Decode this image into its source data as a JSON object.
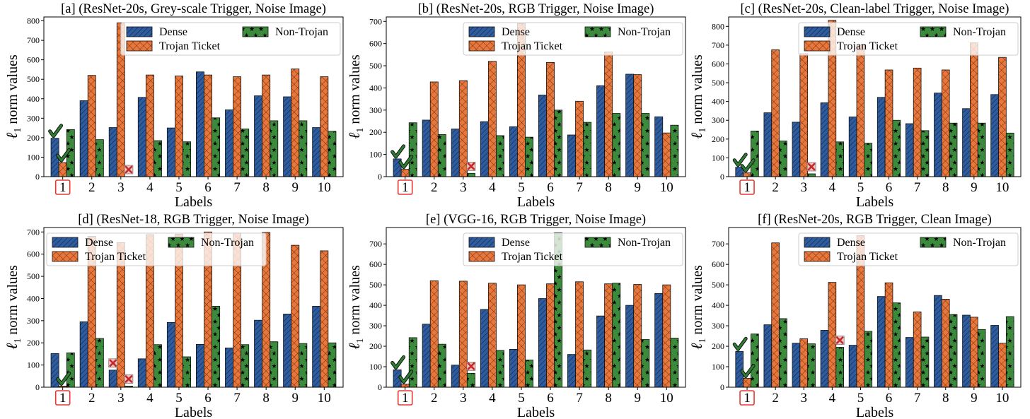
{
  "colors": {
    "dense": "#2e5c9e",
    "ticket": "#e9773b",
    "nontrojan": "#3c8a3c",
    "check": "#2e7d32",
    "cross": "#c62828",
    "highlight": "#e53935"
  },
  "chart_data": [
    {
      "type": "bar",
      "title": "[a] (ResNet-20s, Grey-scale Trigger, Noise Image)",
      "xlabel": "Labels",
      "ylabel_main": "ℓ",
      "ylabel_sub": "1",
      "ylabel_rest": " norm values",
      "categories": [
        "1",
        "2",
        "3",
        "4",
        "5",
        "6",
        "7",
        "8",
        "9",
        "10"
      ],
      "ylim": [
        0,
        820
      ],
      "yticks": [
        0,
        100,
        200,
        300,
        400,
        500,
        600,
        700,
        800
      ],
      "series": [
        {
          "name": "Dense",
          "values": [
            197,
            390,
            252,
            407,
            250,
            538,
            343,
            415,
            410,
            252
          ]
        },
        {
          "name": "Trojan Ticket",
          "values": [
            72,
            520,
            790,
            522,
            517,
            522,
            513,
            522,
            553,
            513
          ]
        },
        {
          "name": "Non-Trojan",
          "values": [
            242,
            190,
            0,
            185,
            179,
            302,
            245,
            287,
            287,
            233
          ]
        }
      ],
      "highlight_category": "1",
      "checks": [
        {
          "category": "1",
          "series": "Dense"
        },
        {
          "category": "1",
          "series": "Trojan Ticket"
        }
      ],
      "crosses": [
        {
          "category": "3",
          "series": "Non-Trojan"
        }
      ],
      "legend": "top-right"
    },
    {
      "type": "bar",
      "title": "[b] (ResNet-20s, RGB Trigger, Noise Image)",
      "xlabel": "Labels",
      "ylabel_main": "ℓ",
      "ylabel_sub": "1",
      "ylabel_rest": " norm values",
      "categories": [
        "1",
        "2",
        "3",
        "4",
        "5",
        "6",
        "7",
        "8",
        "9",
        "10"
      ],
      "ylim": [
        0,
        720
      ],
      "yticks": [
        0,
        100,
        200,
        300,
        400,
        500,
        600,
        700
      ],
      "series": [
        {
          "name": "Dense",
          "values": [
            80,
            255,
            215,
            248,
            225,
            368,
            188,
            410,
            462,
            270
          ]
        },
        {
          "name": "Trojan Ticket",
          "values": [
            33,
            427,
            433,
            520,
            690,
            515,
            340,
            562,
            460,
            197
          ]
        },
        {
          "name": "Non-Trojan",
          "values": [
            243,
            190,
            15,
            185,
            178,
            300,
            245,
            285,
            285,
            232
          ]
        }
      ],
      "highlight_category": "1",
      "checks": [
        {
          "category": "1",
          "series": "Dense"
        },
        {
          "category": "1",
          "series": "Trojan Ticket"
        }
      ],
      "crosses": [
        {
          "category": "3",
          "series": "Non-Trojan"
        }
      ],
      "legend": "top-right"
    },
    {
      "type": "bar",
      "title": "[c] (ResNet-20s, Clean-label Trigger, Noise Image)",
      "xlabel": "Labels",
      "ylabel_main": "ℓ",
      "ylabel_sub": "1",
      "ylabel_rest": " norm values",
      "categories": [
        "1",
        "2",
        "3",
        "4",
        "5",
        "6",
        "7",
        "8",
        "9",
        "10"
      ],
      "ylim": [
        0,
        850
      ],
      "yticks": [
        0,
        100,
        200,
        300,
        400,
        500,
        600,
        700,
        800
      ],
      "series": [
        {
          "name": "Dense",
          "values": [
            50,
            340,
            290,
            393,
            318,
            422,
            282,
            445,
            362,
            437
          ]
        },
        {
          "name": "Trojan Ticket",
          "values": [
            20,
            675,
            655,
            832,
            700,
            568,
            578,
            568,
            712,
            635
          ]
        },
        {
          "name": "Non-Trojan",
          "values": [
            243,
            190,
            15,
            185,
            178,
            300,
            245,
            285,
            285,
            232
          ]
        }
      ],
      "highlight_category": "1",
      "checks": [
        {
          "category": "1",
          "series": "Dense"
        },
        {
          "category": "1",
          "series": "Trojan Ticket"
        }
      ],
      "crosses": [
        {
          "category": "3",
          "series": "Non-Trojan"
        }
      ],
      "legend": "top-right"
    },
    {
      "type": "bar",
      "title": "[d] (ResNet-18, RGB Trigger, Noise Image)",
      "xlabel": "Labels",
      "ylabel_main": "ℓ",
      "ylabel_sub": "1",
      "ylabel_rest": " norm values",
      "categories": [
        "1",
        "2",
        "3",
        "4",
        "5",
        "6",
        "7",
        "8",
        "9",
        "10"
      ],
      "ylim": [
        0,
        720
      ],
      "yticks": [
        0,
        100,
        200,
        300,
        400,
        500,
        600,
        700
      ],
      "series": [
        {
          "name": "Dense",
          "values": [
            152,
            295,
            77,
            128,
            292,
            193,
            177,
            302,
            330,
            365
          ]
        },
        {
          "name": "Trojan Ticket",
          "values": [
            5,
            680,
            652,
            688,
            690,
            700,
            695,
            698,
            640,
            615
          ]
        },
        {
          "name": "Non-Trojan",
          "values": [
            155,
            220,
            5,
            192,
            137,
            365,
            192,
            205,
            197,
            200
          ]
        }
      ],
      "highlight_category": "1",
      "checks": [
        {
          "category": "1",
          "series": "Trojan Ticket"
        }
      ],
      "crosses": [
        {
          "category": "3",
          "series": "Dense"
        },
        {
          "category": "3",
          "series": "Non-Trojan"
        }
      ],
      "legend": "top-left"
    },
    {
      "type": "bar",
      "title": "[e] (VGG-16, RGB Trigger, Noise Image)",
      "xlabel": "Labels",
      "ylabel_main": "ℓ",
      "ylabel_sub": "1",
      "ylabel_rest": " norm values",
      "categories": [
        "1",
        "2",
        "3",
        "4",
        "5",
        "6",
        "7",
        "8",
        "9",
        "10"
      ],
      "ylim": [
        0,
        780
      ],
      "yticks": [
        0,
        100,
        200,
        300,
        400,
        500,
        600,
        700
      ],
      "series": [
        {
          "name": "Dense",
          "values": [
            85,
            308,
            108,
            380,
            185,
            433,
            160,
            348,
            400,
            458
          ]
        },
        {
          "name": "Trojan Ticket",
          "values": [
            15,
            520,
            518,
            508,
            500,
            505,
            515,
            505,
            502,
            500
          ]
        },
        {
          "name": "Non-Trojan",
          "values": [
            242,
            210,
            68,
            180,
            133,
            755,
            182,
            508,
            233,
            240
          ]
        }
      ],
      "highlight_category": "1",
      "checks": [
        {
          "category": "1",
          "series": "Dense"
        },
        {
          "category": "1",
          "series": "Trojan Ticket"
        }
      ],
      "crosses": [
        {
          "category": "3",
          "series": "Non-Trojan"
        }
      ],
      "legend": "top-right"
    },
    {
      "type": "bar",
      "title": "[f] (ResNet-20s, RGB Trigger, Clean Image)",
      "xlabel": "Labels",
      "ylabel_main": "ℓ",
      "ylabel_sub": "1",
      "ylabel_rest": " norm values",
      "categories": [
        "1",
        "2",
        "3",
        "4",
        "5",
        "6",
        "7",
        "8",
        "9",
        "10"
      ],
      "ylim": [
        0,
        780
      ],
      "yticks": [
        0,
        100,
        200,
        300,
        400,
        500,
        600,
        700
      ],
      "series": [
        {
          "name": "Dense",
          "values": [
            175,
            305,
            215,
            278,
            205,
            443,
            243,
            448,
            352,
            302
          ]
        },
        {
          "name": "Trojan Ticket",
          "values": [
            43,
            705,
            237,
            512,
            740,
            510,
            368,
            430,
            342,
            215
          ]
        },
        {
          "name": "Non-Trojan",
          "values": [
            260,
            335,
            212,
            195,
            273,
            412,
            245,
            355,
            282,
            345
          ]
        }
      ],
      "highlight_category": "1",
      "checks": [
        {
          "category": "1",
          "series": "Dense"
        },
        {
          "category": "1",
          "series": "Trojan Ticket"
        }
      ],
      "crosses": [
        {
          "category": "4",
          "series": "Non-Trojan"
        }
      ],
      "legend": "top-right"
    }
  ]
}
